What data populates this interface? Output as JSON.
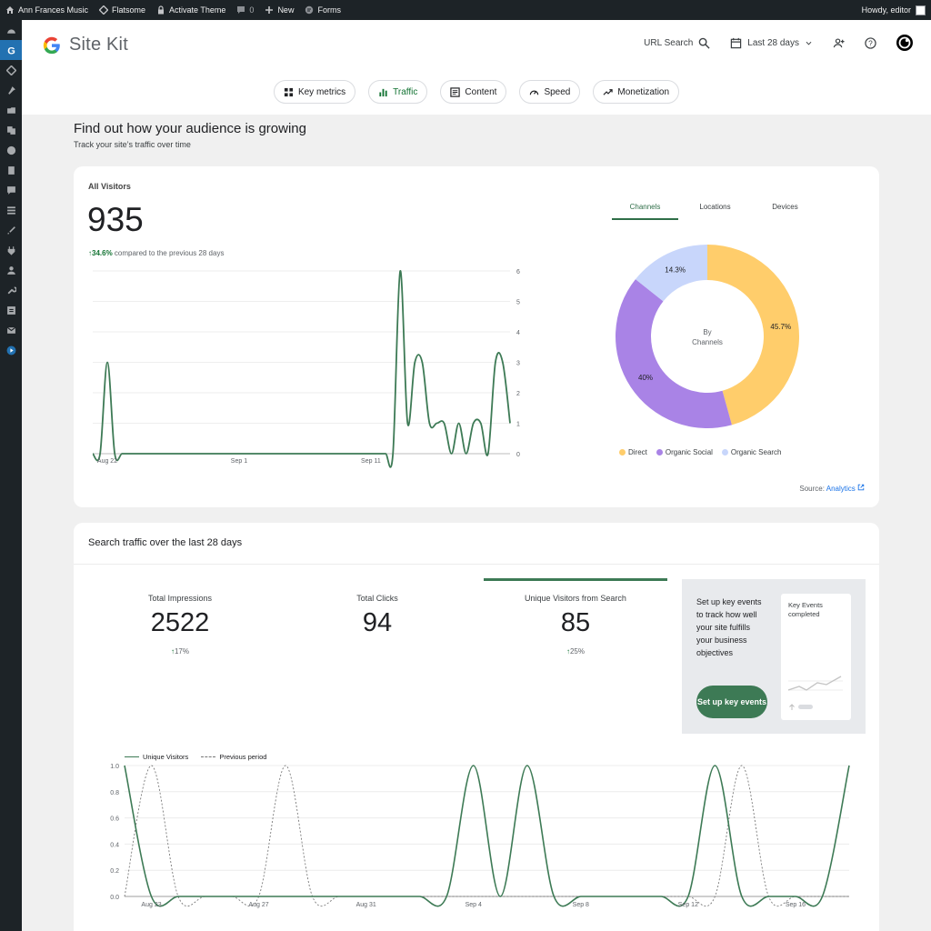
{
  "adminbar": {
    "site_name": "Ann Frances Music",
    "theme": "Flatsome",
    "activate_theme": "Activate Theme",
    "comments_count": "0",
    "new_label": "New",
    "forms_label": "Forms",
    "greeting": "Howdy, editor"
  },
  "header": {
    "logo_text": "Site Kit",
    "url_search": "URL Search",
    "date_range": "Last 28 days"
  },
  "tabs": [
    {
      "label": "Key metrics",
      "icon": "grid-icon"
    },
    {
      "label": "Traffic",
      "icon": "bar-chart-icon",
      "active": true
    },
    {
      "label": "Content",
      "icon": "content-icon"
    },
    {
      "label": "Speed",
      "icon": "speedometer-icon"
    },
    {
      "label": "Monetization",
      "icon": "trend-icon"
    }
  ],
  "section": {
    "title": "Find out how your audience is growing",
    "subtitle": "Track your site’s traffic over time"
  },
  "all_visitors": {
    "label": "All Visitors",
    "value": "935",
    "delta": "34.6%",
    "delta_text": "compared to the previous 28 days",
    "source_label": "Source:",
    "source_link": "Analytics",
    "dimension_tabs": [
      "Channels",
      "Locations",
      "Devices"
    ],
    "donut_center": [
      "By",
      "Channels"
    ]
  },
  "search_traffic": {
    "title": "Search traffic over the last 28 days",
    "metrics": [
      {
        "label": "Total Impressions",
        "value": "2522",
        "delta": "17%"
      },
      {
        "label": "Total Clicks",
        "value": "94",
        "delta": ""
      },
      {
        "label": "Unique Visitors from Search",
        "value": "85",
        "delta": "25%"
      }
    ],
    "cta_text": "Set up key events to track how well your site fulfills your business objectives",
    "cta_button": "Set up key events",
    "mini_title": "Key Events completed",
    "legend_current": "Unique Visitors",
    "legend_previous": "Previous period"
  },
  "colors": {
    "accent": "#3d7a55",
    "direct": "#ffcd6b",
    "organic_social": "#a983e6",
    "organic_search": "#c8d6fb"
  },
  "chart_data": [
    {
      "type": "line",
      "title": "",
      "series": [
        {
          "name": "",
          "values": [
            0,
            0,
            3,
            0,
            0,
            0,
            0,
            0,
            0,
            0,
            0,
            0,
            0,
            0,
            0,
            0,
            0,
            0,
            0,
            0,
            0,
            0,
            0,
            0,
            0,
            0,
            0,
            0,
            0,
            0,
            0,
            0,
            0,
            0,
            0,
            0,
            0,
            0,
            0,
            0,
            0,
            0,
            6,
            1,
            3,
            3,
            1,
            1,
            1,
            0,
            1,
            0,
            1,
            1,
            0,
            3,
            3,
            1
          ]
        }
      ],
      "x_ticks": [
        "Aug 22",
        "Sep 1",
        "Sep 11"
      ],
      "y_ticks": [
        "0",
        "1",
        "2",
        "3",
        "4",
        "5",
        "6"
      ],
      "ylim": [
        0,
        6
      ]
    },
    {
      "type": "pie",
      "categories": [
        "Direct",
        "Organic Social",
        "Organic Search"
      ],
      "values": [
        45.7,
        40,
        14.3
      ],
      "value_labels": [
        "45.7%",
        "40%",
        "14.3%"
      ]
    },
    {
      "type": "line",
      "title": "",
      "x_ticks": [
        "Aug 23",
        "Aug 27",
        "Aug 31",
        "Sep 4",
        "Sep 8",
        "Sep 12",
        "Sep 16"
      ],
      "y_ticks": [
        "0.0",
        "0.2",
        "0.4",
        "0.6",
        "0.8",
        "1.0"
      ],
      "ylim": [
        0,
        1
      ],
      "series": [
        {
          "name": "Unique Visitors",
          "values": [
            1,
            0,
            0,
            0,
            0,
            0,
            0,
            0,
            0,
            0,
            0,
            0,
            0,
            1,
            0,
            1,
            0,
            0,
            0,
            0,
            0,
            0,
            1,
            0,
            0,
            0,
            0,
            1
          ]
        },
        {
          "name": "Previous period",
          "values": [
            0,
            1,
            0,
            0,
            0,
            0,
            1,
            0,
            0,
            0,
            0,
            0,
            0,
            0,
            0,
            0,
            0,
            0,
            0,
            0,
            0,
            0,
            0,
            1,
            0,
            0,
            0,
            0
          ]
        }
      ]
    }
  ]
}
